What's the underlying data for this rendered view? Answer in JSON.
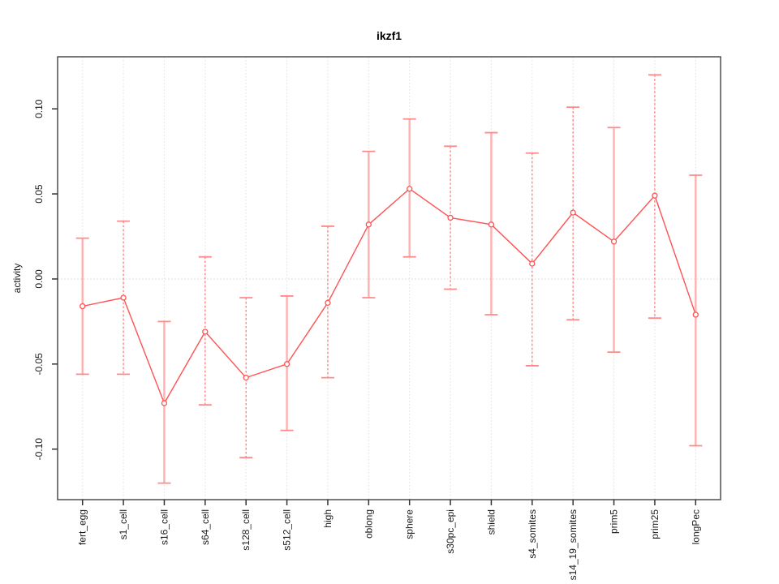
{
  "title": "ikzf1",
  "y_axis": {
    "label": "activity",
    "tick_labels": [
      "0.10",
      "0.05",
      "0.00",
      "-0.05",
      "-0.10"
    ],
    "tick_values": [
      0.1,
      0.05,
      0.0,
      -0.05,
      -0.1
    ]
  },
  "chart_data": {
    "type": "line",
    "title": "ikzf1",
    "xlabel": "",
    "ylabel": "activity",
    "categories": [
      "fert_egg",
      "s1_cell",
      "s16_cell",
      "s64_cell",
      "s128_cell",
      "s512_cell",
      "high",
      "oblong",
      "sphere",
      "s30pc_epi",
      "shield",
      "s4_somites",
      "s14_19_somites",
      "prim5",
      "prim25",
      "longPec"
    ],
    "series": [
      {
        "name": "activity",
        "values": [
          -0.016,
          -0.011,
          -0.073,
          -0.031,
          -0.058,
          -0.05,
          -0.014,
          0.032,
          0.053,
          0.036,
          0.032,
          0.009,
          0.039,
          0.022,
          0.049,
          -0.021
        ],
        "error_low": [
          -0.056,
          -0.056,
          -0.12,
          -0.074,
          -0.105,
          -0.089,
          -0.058,
          -0.011,
          0.013,
          -0.006,
          -0.021,
          -0.051,
          -0.024,
          -0.043,
          -0.023,
          -0.098
        ],
        "error_high": [
          0.024,
          0.034,
          -0.025,
          0.013,
          -0.011,
          -0.01,
          0.031,
          0.075,
          0.094,
          0.078,
          0.086,
          0.074,
          0.101,
          0.089,
          0.12,
          0.061
        ],
        "error_bar_styles": [
          "solid",
          "dashed",
          "solid",
          "dashed",
          "dashed",
          "solid",
          "dashed",
          "solid",
          "solid",
          "dashed",
          "solid",
          "dashed",
          "dashed",
          "solid",
          "dashed",
          "solid"
        ]
      }
    ],
    "ylim": [
      -0.1297,
      0.1306
    ],
    "y_ticks": [
      0.1,
      0.05,
      0.0,
      -0.05,
      -0.1
    ],
    "grid": "dotted vertical gridline at each category; dotted horizontal gridline at y=0",
    "legend": "none",
    "marker": "open-circle",
    "colors": {
      "line": "#ff5252",
      "point_stroke": "#ff5252",
      "error_bar_solid": "#ffb0b0",
      "error_bar_dashed": "#ff7070",
      "error_cap": "#ff8a8a",
      "gridline": "#e0e0e0",
      "zero_line": "#d6d6d6",
      "box": "#4d4d4d",
      "tick": "#333333",
      "text": "#1a1a1a"
    }
  }
}
